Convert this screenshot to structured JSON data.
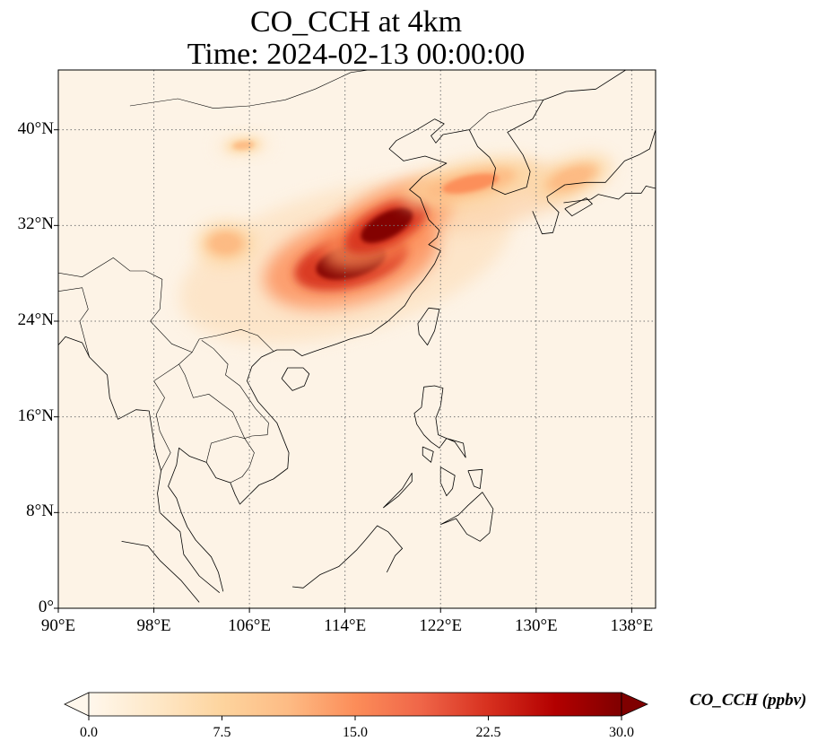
{
  "title": {
    "line1": "CO_CCH at 4km",
    "line2": "Time: 2024-02-13 00:00:00"
  },
  "map": {
    "projection": "PlateCarree",
    "lon_range": [
      90,
      140
    ],
    "lat_range": [
      0,
      45
    ],
    "gridlines": true,
    "gridline_style": "dotted",
    "coastlines": true,
    "borders": true,
    "x_ticks": [
      "90°E",
      "98°E",
      "106°E",
      "114°E",
      "122°E",
      "130°E",
      "138°E"
    ],
    "x_tick_values": [
      90,
      98,
      106,
      114,
      122,
      130,
      138
    ],
    "y_ticks": [
      "0°",
      "8°N",
      "16°N",
      "24°N",
      "32°N",
      "40°N"
    ],
    "y_tick_values": [
      0,
      8,
      16,
      24,
      32,
      40
    ],
    "field": {
      "variable": "CO_CCH",
      "units": "ppbv",
      "background_value": 2.0,
      "plumes": [
        {
          "region": "central-east China (Hunan/Jiangxi)",
          "center_lon": 114.5,
          "center_lat": 29.0,
          "peak": 30
        },
        {
          "region": "Yangtze river delta",
          "center_lon": 117.5,
          "center_lat": 32.0,
          "peak": 30
        },
        {
          "region": "Yellow Sea to Korea",
          "center_lon": 124.5,
          "center_lat": 35.5,
          "peak": 16
        },
        {
          "region": "southern Japan",
          "center_lon": 133.0,
          "center_lat": 36.0,
          "peak": 13
        },
        {
          "region": "Sichuan basin",
          "center_lon": 104.0,
          "center_lat": 30.5,
          "peak": 13
        },
        {
          "region": "northern China",
          "center_lon": 105.5,
          "center_lat": 38.7,
          "peak": 12
        }
      ]
    }
  },
  "colorbar": {
    "label": "CO_CCH (ppbv)",
    "ticks": [
      "0.0",
      "7.5",
      "15.0",
      "22.5",
      "30.0"
    ],
    "tick_values": [
      0,
      7.5,
      15,
      22.5,
      30
    ],
    "range": [
      0,
      30
    ],
    "colormap": "OrRd",
    "colors": [
      "#fff7ec",
      "#fee8c8",
      "#fdd49e",
      "#fdbb84",
      "#fc8d59",
      "#ef6548",
      "#d7301f",
      "#b30000",
      "#7f0000"
    ],
    "extend": "both"
  }
}
